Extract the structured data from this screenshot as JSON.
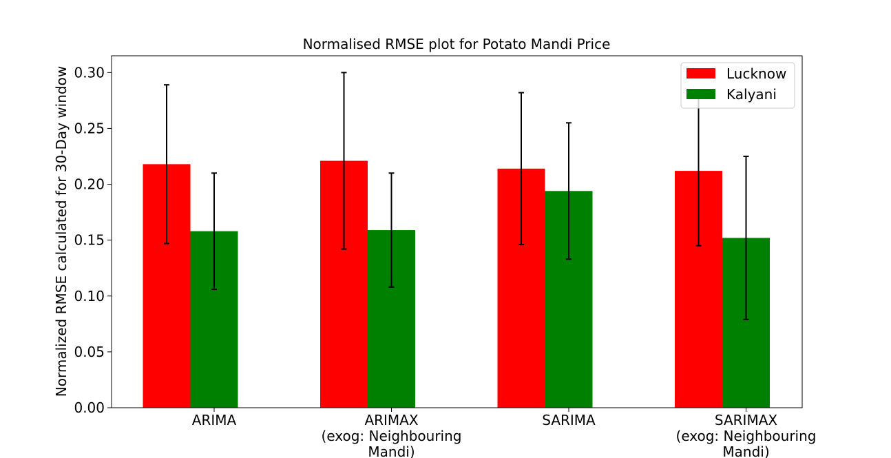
{
  "chart_data": {
    "type": "bar",
    "title": "Normalised RMSE plot for Potato Mandi Price",
    "xlabel": "",
    "ylabel": "Normalized RMSE calculated for 30-Day window",
    "ylim": [
      0.0,
      0.315
    ],
    "yticks": [
      "0.00",
      "0.05",
      "0.10",
      "0.15",
      "0.20",
      "0.25",
      "0.30"
    ],
    "categories": [
      [
        "ARIMA"
      ],
      [
        "ARIMAX",
        "(exog: Neighbouring",
        "Mandi)"
      ],
      [
        "SARIMA"
      ],
      [
        "SARIMAX",
        "(exog: Neighbouring",
        "Mandi)"
      ]
    ],
    "series": [
      {
        "name": "Lucknow",
        "color": "#ff0000",
        "values": [
          0.218,
          0.221,
          0.214,
          0.212
        ],
        "error": [
          0.071,
          0.079,
          0.068,
          0.067
        ]
      },
      {
        "name": "Kalyani",
        "color": "#008000",
        "values": [
          0.158,
          0.159,
          0.194,
          0.152
        ],
        "error": [
          0.052,
          0.051,
          0.061,
          0.073
        ]
      }
    ],
    "legend_position": "top-right",
    "grid": false
  }
}
